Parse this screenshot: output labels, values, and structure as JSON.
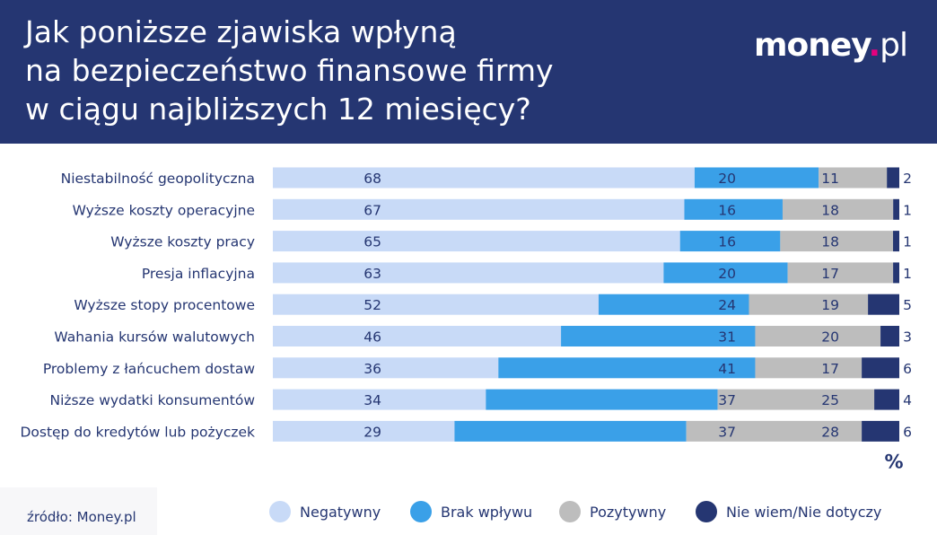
{
  "header": {
    "title": "Jak poniższe zjawiska wpłyną\nna bezpieczeństwo finansowe firmy\nw ciągu najbliższych 12 miesięcy?",
    "logo": {
      "name": "money",
      "dot": ".",
      "tld": "pl"
    },
    "background": "#253672"
  },
  "source": "źródło: Money.pl",
  "unit_label": "%",
  "colors": {
    "negatywny": "#c8daf7",
    "brak_wplywu": "#3aa0e8",
    "pozytywny": "#bdbdbd",
    "nie_wiem": "#253672",
    "text": "#253672"
  },
  "legend": [
    {
      "label": "Negatywny",
      "color": "#c8daf7"
    },
    {
      "label": "Brak wpływu",
      "color": "#3aa0e8"
    },
    {
      "label": "Pozytywny",
      "color": "#bdbdbd"
    },
    {
      "label": "Nie wiem/Nie dotyczy",
      "color": "#253672"
    }
  ],
  "chart_data": {
    "type": "bar",
    "orientation": "horizontal",
    "stacked": true,
    "title": "Jak poniższe zjawiska wpłyną na bezpieczeństwo finansowe firmy w ciągu najbliższych 12 miesięcy?",
    "unit": "%",
    "categories": [
      "Niestabilność geopolityczna",
      "Wyższe koszty operacyjne",
      "Wyższe koszty pracy",
      "Presja inflacyjna",
      "Wyższe stopy procentowe",
      "Wahania kursów walutowych",
      "Problemy z łańcuchem dostaw",
      "Niższe wydatki konsumentów",
      "Dostęp do kredytów lub pożyczek"
    ],
    "series": [
      {
        "name": "Negatywny",
        "values": [
          68,
          67,
          65,
          63,
          52,
          46,
          36,
          34,
          29
        ]
      },
      {
        "name": "Brak wpływu",
        "values": [
          20,
          16,
          16,
          20,
          24,
          31,
          41,
          37,
          37
        ]
      },
      {
        "name": "Pozytywny",
        "values": [
          11,
          18,
          18,
          17,
          19,
          20,
          17,
          25,
          28
        ]
      },
      {
        "name": "Nie wiem/Nie dotyczy",
        "values": [
          2,
          1,
          1,
          1,
          5,
          3,
          6,
          4,
          6
        ]
      }
    ],
    "legend_position": "bottom"
  }
}
